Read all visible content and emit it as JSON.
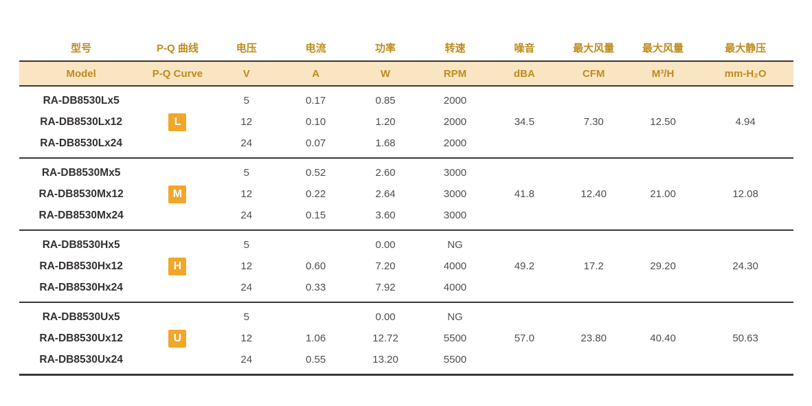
{
  "colors": {
    "accent_gold": "#BF8B1D",
    "header_band_bg": "#FAE5C3",
    "badge_bg": "#F2A62A",
    "badge_text": "#FFFFFF",
    "rule_line": "#3B3734",
    "model_text": "#33302E",
    "value_text": "#4D4D4D",
    "page_bg": "#FFFFFF"
  },
  "table": {
    "columns": [
      {
        "key": "model",
        "zh": "型号",
        "en": "Model"
      },
      {
        "key": "pq",
        "zh": "P-Q 曲线",
        "en": "P-Q Curve"
      },
      {
        "key": "v",
        "zh": "电压",
        "en": "V"
      },
      {
        "key": "a",
        "zh": "电流",
        "en": "A"
      },
      {
        "key": "w",
        "zh": "功率",
        "en": "W"
      },
      {
        "key": "rpm",
        "zh": "转速",
        "en": "RPM"
      },
      {
        "key": "dba",
        "zh": "噪音",
        "en": "dBA"
      },
      {
        "key": "cfm",
        "zh": "最大风量",
        "en": "CFM"
      },
      {
        "key": "m3h",
        "zh": "最大风量",
        "en": "M³/H"
      },
      {
        "key": "mmh2o",
        "zh": "最大静压",
        "en": "mm-H₂O"
      }
    ],
    "groups": [
      {
        "badge": "L",
        "badge_row_index": 1,
        "rows": [
          {
            "model": "RA-DB8530Lx5",
            "v": "5",
            "a": "0.17",
            "w": "0.85",
            "rpm": "2000",
            "dba": "",
            "cfm": "",
            "m3h": "",
            "mmh2o": ""
          },
          {
            "model": "RA-DB8530Lx12",
            "v": "12",
            "a": "0.10",
            "w": "1.20",
            "rpm": "2000",
            "dba": "34.5",
            "cfm": "7.30",
            "m3h": "12.50",
            "mmh2o": "4.94"
          },
          {
            "model": "RA-DB8530Lx24",
            "v": "24",
            "a": "0.07",
            "w": "1.68",
            "rpm": "2000",
            "dba": "",
            "cfm": "",
            "m3h": "",
            "mmh2o": ""
          }
        ]
      },
      {
        "badge": "M",
        "badge_row_index": 1,
        "rows": [
          {
            "model": "RA-DB8530Mx5",
            "v": "5",
            "a": "0.52",
            "w": "2.60",
            "rpm": "3000",
            "dba": "",
            "cfm": "",
            "m3h": "",
            "mmh2o": ""
          },
          {
            "model": "RA-DB8530Mx12",
            "v": "12",
            "a": "0.22",
            "w": "2.64",
            "rpm": "3000",
            "dba": "41.8",
            "cfm": "12.40",
            "m3h": "21.00",
            "mmh2o": "12.08"
          },
          {
            "model": "RA-DB8530Mx24",
            "v": "24",
            "a": "0.15",
            "w": "3.60",
            "rpm": "3000",
            "dba": "",
            "cfm": "",
            "m3h": "",
            "mmh2o": ""
          }
        ]
      },
      {
        "badge": "H",
        "badge_row_index": 1,
        "rows": [
          {
            "model": "RA-DB8530Hx5",
            "v": "5",
            "a": "",
            "w": "0.00",
            "rpm": "NG",
            "dba": "",
            "cfm": "",
            "m3h": "",
            "mmh2o": ""
          },
          {
            "model": "RA-DB8530Hx12",
            "v": "12",
            "a": "0.60",
            "w": "7.20",
            "rpm": "4000",
            "dba": "49.2",
            "cfm": "17.2",
            "m3h": "29.20",
            "mmh2o": "24.30"
          },
          {
            "model": "RA-DB8530Hx24",
            "v": "24",
            "a": "0.33",
            "w": "7.92",
            "rpm": "4000",
            "dba": "",
            "cfm": "",
            "m3h": "",
            "mmh2o": ""
          }
        ]
      },
      {
        "badge": "U",
        "badge_row_index": 1,
        "rows": [
          {
            "model": "RA-DB8530Ux5",
            "v": "5",
            "a": "",
            "w": "0.00",
            "rpm": "NG",
            "dba": "",
            "cfm": "",
            "m3h": "",
            "mmh2o": ""
          },
          {
            "model": "RA-DB8530Ux12",
            "v": "12",
            "a": "1.06",
            "w": "12.72",
            "rpm": "5500",
            "dba": "57.0",
            "cfm": "23.80",
            "m3h": "40.40",
            "mmh2o": "50.63"
          },
          {
            "model": "RA-DB8530Ux24",
            "v": "24",
            "a": "0.55",
            "w": "13.20",
            "rpm": "5500",
            "dba": "",
            "cfm": "",
            "m3h": "",
            "mmh2o": ""
          }
        ]
      }
    ]
  }
}
